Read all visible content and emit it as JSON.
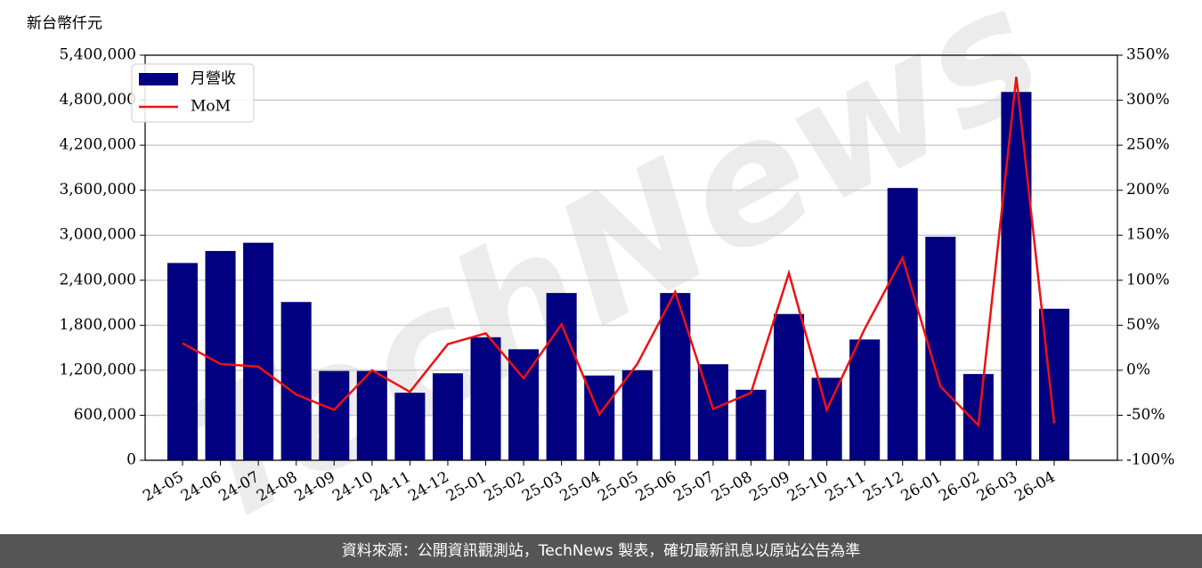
{
  "chart_data": {
    "type": "bar",
    "y_label": "新台幣仟元",
    "watermark": "TechNews",
    "source": "資料來源：公開資訊觀測站，TechNews 製表，確切最新訊息以原站公告為準",
    "categories": [
      "24-05",
      "24-06",
      "24-07",
      "24-08",
      "24-09",
      "24-10",
      "24-11",
      "24-12",
      "25-01",
      "25-02",
      "25-03",
      "25-04",
      "25-05",
      "25-06",
      "25-07",
      "25-08",
      "25-09",
      "25-10",
      "25-11",
      "25-12",
      "26-01",
      "26-02",
      "26-03",
      "26-04"
    ],
    "series": [
      {
        "name": "月營收",
        "type": "bar",
        "color": "#000080",
        "values": [
          2630000,
          2790000,
          2900000,
          2110000,
          1190000,
          1190000,
          900000,
          1160000,
          1640000,
          1480000,
          2230000,
          1130000,
          1200000,
          2230000,
          1280000,
          940000,
          1950000,
          1100000,
          1610000,
          3630000,
          2980000,
          1150000,
          4910000,
          2020000
        ]
      },
      {
        "name": "MoM",
        "type": "line",
        "axis": "y2",
        "color": "#ee1111",
        "values": [
          30,
          7,
          4,
          -27,
          -44,
          0,
          -24,
          29,
          41,
          -9,
          51,
          -49,
          7,
          87,
          -43,
          -25,
          108,
          -44,
          46,
          125,
          -18,
          -61,
          326,
          -59
        ]
      }
    ],
    "ylim": [
      0,
      5400000
    ],
    "yticks": [
      0,
      {
        "value": 600000,
        "label": "600,000"
      },
      {
        "value": 1200000,
        "label": "1,200,000"
      },
      {
        "value": 1800000,
        "label": "1,800,000"
      },
      {
        "value": 2400000,
        "label": "2,400,000"
      },
      {
        "value": 3000000,
        "label": "3,000,000"
      },
      {
        "value": 3600000,
        "label": "3,600,000"
      },
      {
        "value": 4200000,
        "label": "4,200,000"
      },
      {
        "value": 4800000,
        "label": "4,800,000"
      },
      {
        "value": 5400000,
        "label": "5,400,000"
      }
    ],
    "y2lim": [
      -100,
      350
    ],
    "y2ticks": [
      {
        "value": -100,
        "label": "-100%"
      },
      {
        "value": -50,
        "label": "-50%"
      },
      {
        "value": 0,
        "label": "0%"
      },
      {
        "value": 50,
        "label": "50%"
      },
      {
        "value": 100,
        "label": "100%"
      },
      {
        "value": 150,
        "label": "150%"
      },
      {
        "value": 200,
        "label": "200%"
      },
      {
        "value": 250,
        "label": "250%"
      },
      {
        "value": 300,
        "label": "300%"
      },
      {
        "value": 350,
        "label": "350%"
      }
    ],
    "grid": true,
    "legend": "upper left"
  }
}
